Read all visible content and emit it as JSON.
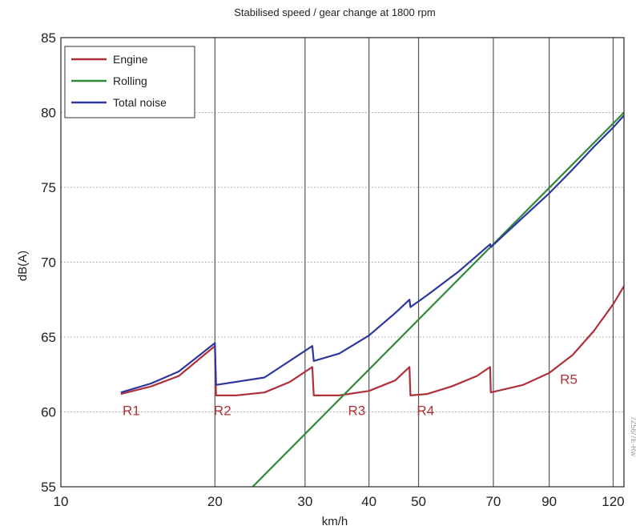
{
  "chart_data": {
    "type": "line",
    "title": "Stabilised speed / gear change at 1800 rpm",
    "xlabel": "km/h",
    "ylabel": "dB(A)",
    "xscale": "log",
    "xlim": [
      10,
      126
    ],
    "ylim": [
      55,
      85
    ],
    "x_ticks": [
      10,
      20,
      30,
      40,
      50,
      70,
      90,
      120
    ],
    "y_ticks": [
      55,
      60,
      65,
      70,
      75,
      80,
      85
    ],
    "grid": "vertical lines at x ticks, dotted horizontal lines at y ticks",
    "legend_position": "top-left",
    "side_text": "7Z56/7E-Rw",
    "series": [
      {
        "name": "Engine",
        "color": "#b0303a",
        "points": [
          [
            13.1,
            61.2
          ],
          [
            15,
            61.7
          ],
          [
            17,
            62.4
          ],
          [
            20,
            64.4
          ],
          [
            20.1,
            61.1
          ],
          [
            22,
            61.1
          ],
          [
            25,
            61.3
          ],
          [
            28,
            62.0
          ],
          [
            31,
            63.0
          ],
          [
            31.2,
            61.1
          ],
          [
            35,
            61.1
          ],
          [
            40,
            61.4
          ],
          [
            45,
            62.1
          ],
          [
            48,
            63.0
          ],
          [
            48.2,
            61.1
          ],
          [
            52,
            61.2
          ],
          [
            58,
            61.7
          ],
          [
            65,
            62.4
          ],
          [
            69,
            63.0
          ],
          [
            69.2,
            61.3
          ],
          [
            80,
            61.8
          ],
          [
            90,
            62.6
          ],
          [
            100,
            63.8
          ],
          [
            110,
            65.4
          ],
          [
            120,
            67.2
          ],
          [
            126,
            68.4
          ]
        ]
      },
      {
        "name": "Rolling",
        "color": "#2f8a3a",
        "points": [
          [
            23.7,
            55.0
          ],
          [
            126,
            80.0
          ]
        ]
      },
      {
        "name": "Total noise",
        "color": "#2e36a0",
        "points": [
          [
            13.1,
            61.3
          ],
          [
            15,
            61.9
          ],
          [
            17,
            62.7
          ],
          [
            20,
            64.6
          ],
          [
            20.1,
            61.8
          ],
          [
            25,
            62.3
          ],
          [
            31,
            64.4
          ],
          [
            31.2,
            63.4
          ],
          [
            35,
            63.9
          ],
          [
            40,
            65.1
          ],
          [
            45,
            66.6
          ],
          [
            48,
            67.5
          ],
          [
            48.2,
            67.0
          ],
          [
            52,
            67.8
          ],
          [
            60,
            69.4
          ],
          [
            69,
            71.2
          ],
          [
            69.2,
            71.0
          ],
          [
            80,
            73.0
          ],
          [
            90,
            74.6
          ],
          [
            100,
            76.2
          ],
          [
            110,
            77.7
          ],
          [
            120,
            79.0
          ],
          [
            126,
            79.8
          ]
        ]
      }
    ],
    "annotations": [
      {
        "text": "R1",
        "x": 13.2,
        "y": 60.1
      },
      {
        "text": "R2",
        "x": 19.9,
        "y": 60.1
      },
      {
        "text": "R3",
        "x": 36.4,
        "y": 60.1
      },
      {
        "text": "R4",
        "x": 49.6,
        "y": 60.1
      },
      {
        "text": "R5",
        "x": 94.5,
        "y": 62.2
      }
    ],
    "annotation_color": "#b0303a"
  }
}
